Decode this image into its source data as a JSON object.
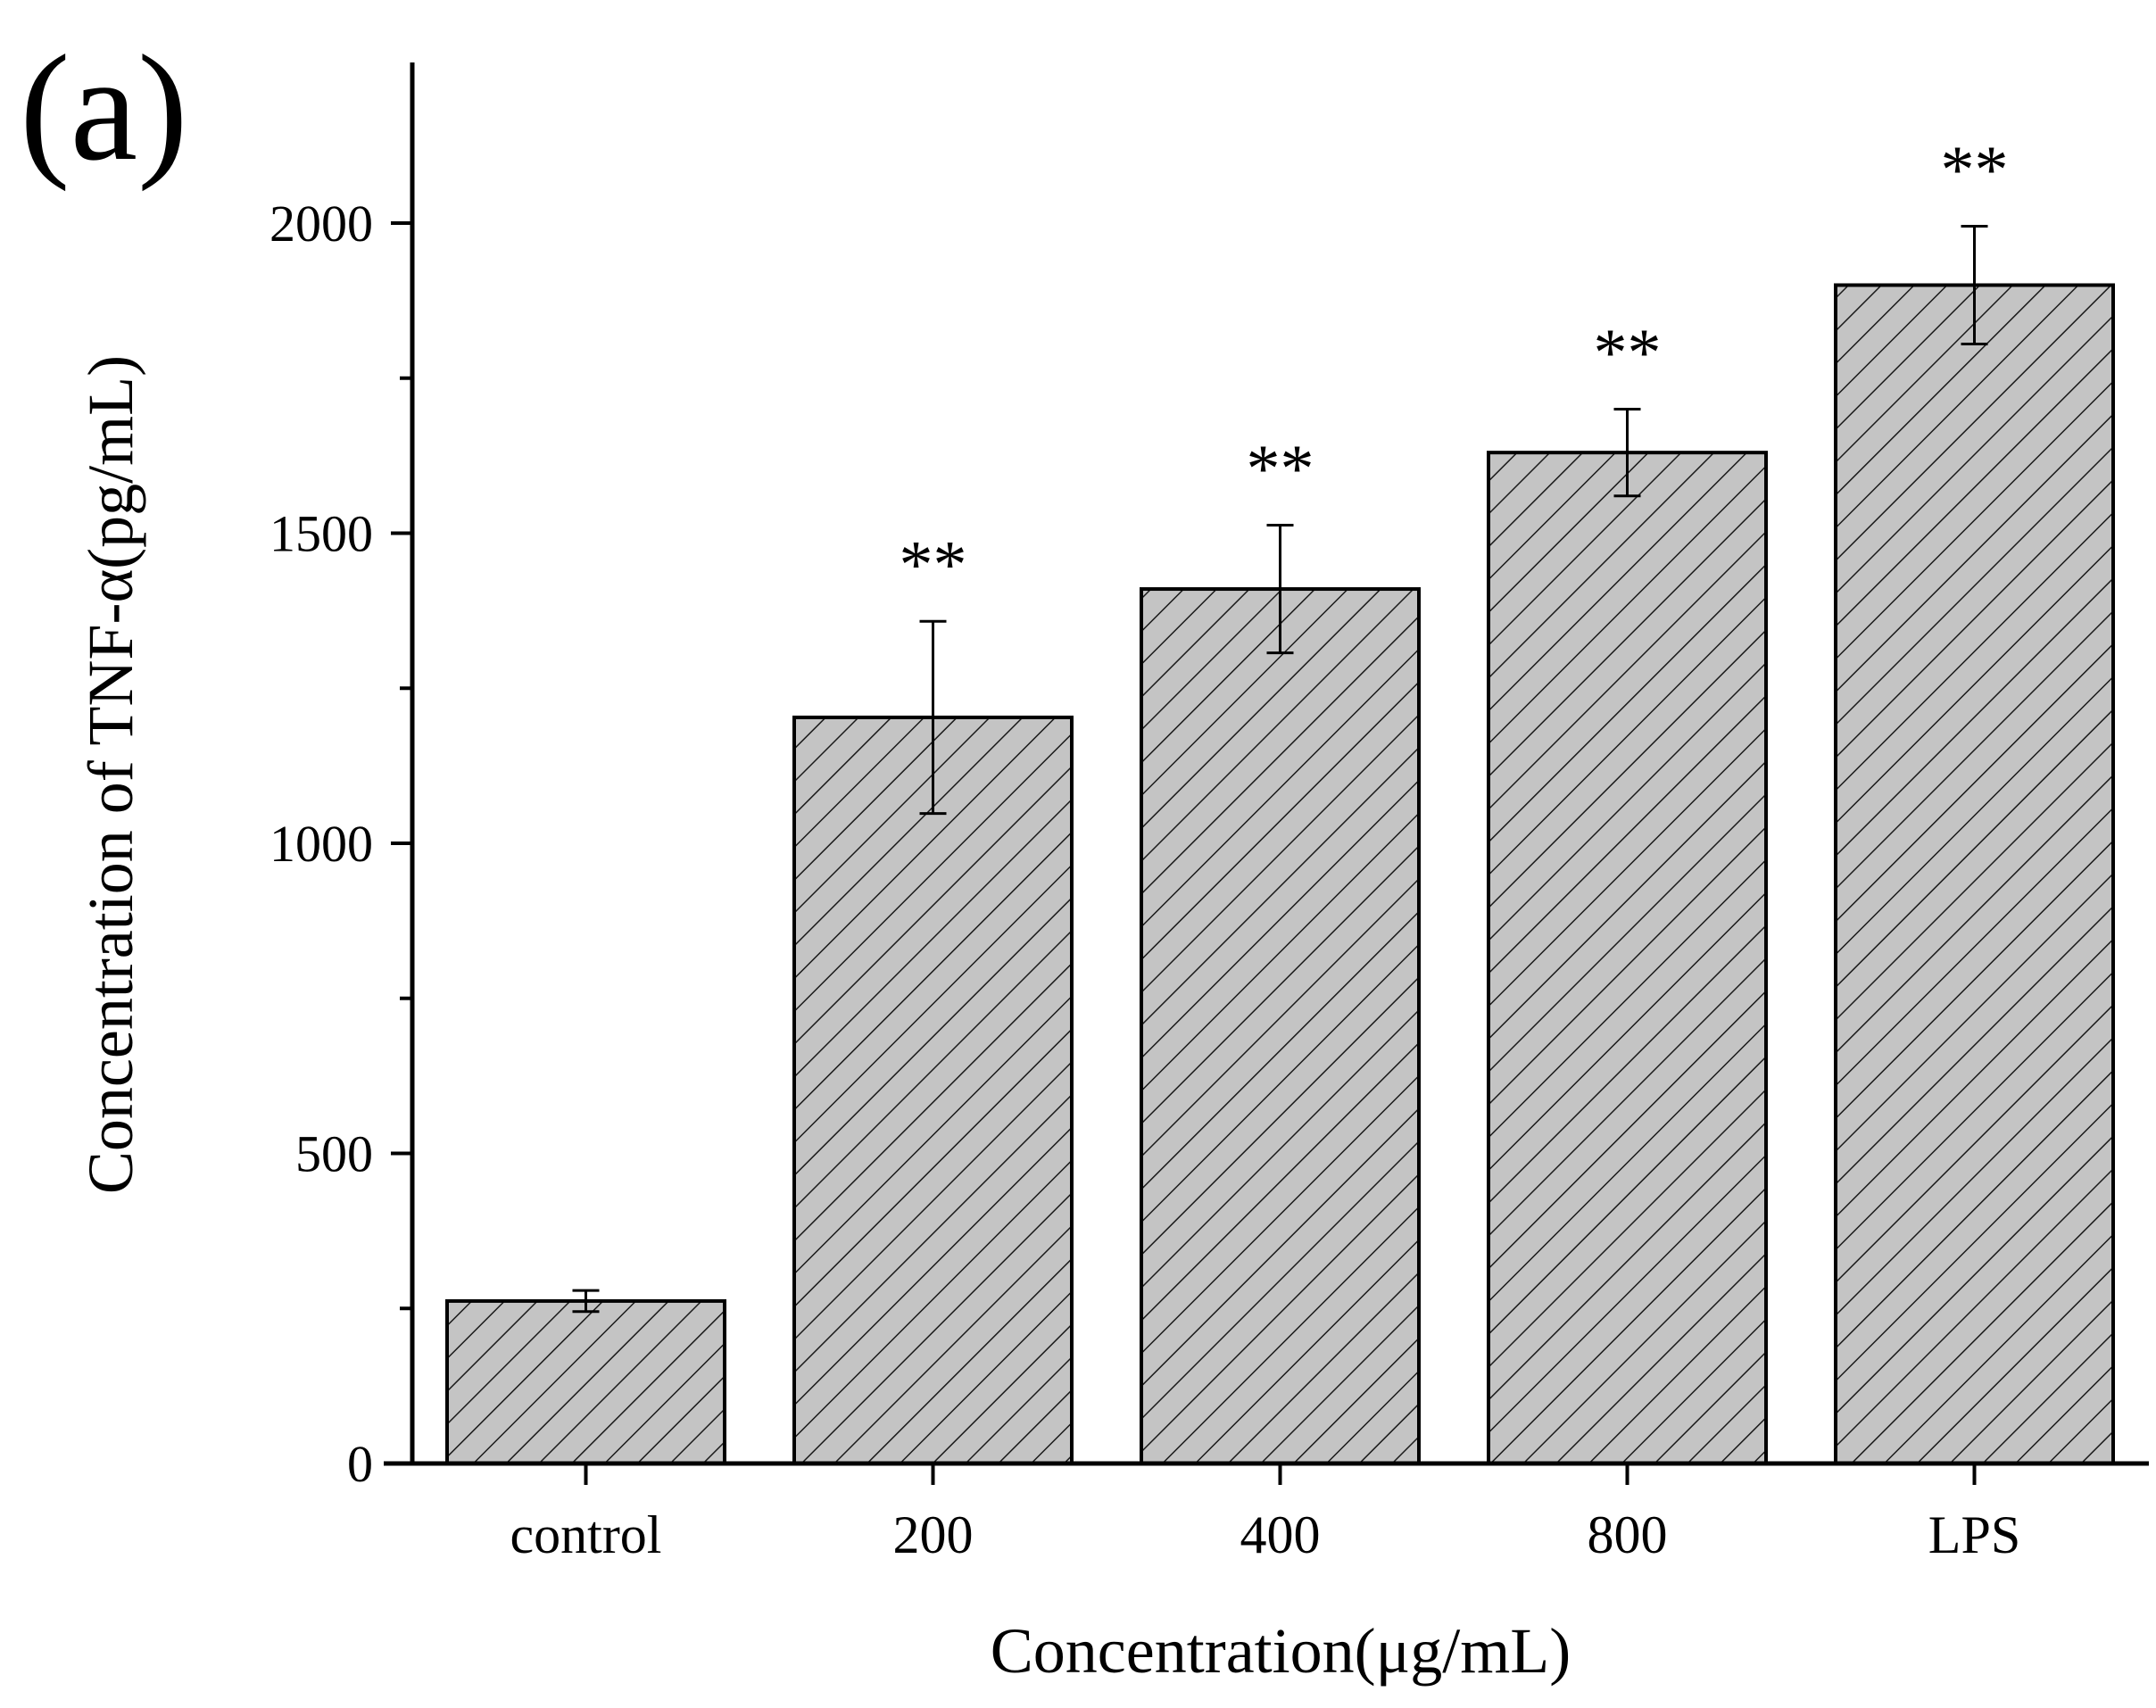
{
  "panel_label": "(a)",
  "chart_data": {
    "type": "bar",
    "title": "",
    "xlabel": "Concentration(μg/mL)",
    "ylabel": "Concentration of TNF-α(pg/mL)",
    "categories": [
      "control",
      "200",
      "400",
      "800",
      "LPS"
    ],
    "values": [
      262,
      1203,
      1410,
      1630,
      1900
    ],
    "errors": [
      17,
      155,
      103,
      70,
      95
    ],
    "annotations": [
      "",
      "**",
      "**",
      "**",
      "**"
    ],
    "ylim": [
      0,
      2250
    ],
    "yticks": [
      0,
      500,
      1000,
      1500,
      2000
    ],
    "grid": false,
    "bar_fill": "#c4c4c4",
    "bar_hatch": "diagonal"
  }
}
